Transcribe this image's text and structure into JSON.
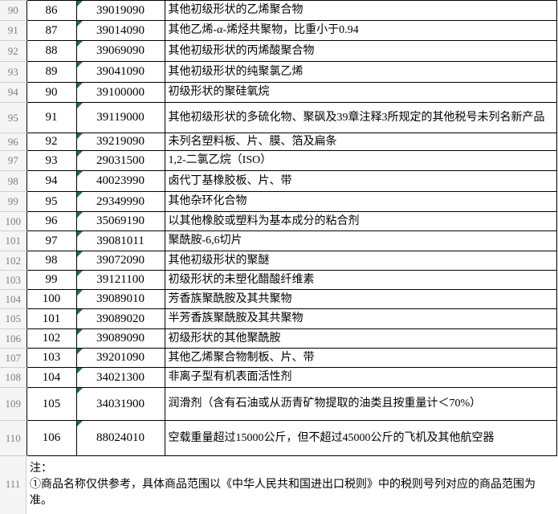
{
  "sheet": {
    "columns": {
      "gutter_width": 33,
      "seq_width": 62,
      "code_width": 110,
      "desc_width": 488
    },
    "colors": {
      "grid_border": "#000000",
      "gutter_bg": "#f5f5f5",
      "gutter_text": "#7e7e7e",
      "gutter_line": "#cfcfcf",
      "cell_bg": "#ffffff",
      "text": "#000000",
      "text_flag_green": "#217346"
    },
    "rows": [
      {
        "excel_row": "90",
        "seq": "86",
        "code": "39019090",
        "desc": "其他初级形状的乙烯聚合物",
        "h": 25
      },
      {
        "excel_row": "91",
        "seq": "87",
        "code": "39014090",
        "desc": "其他乙烯-α-烯烃共聚物，比重小于0.94",
        "h": 25
      },
      {
        "excel_row": "92",
        "seq": "88",
        "code": "39069090",
        "desc": "其他初级形状的丙烯酸聚合物",
        "h": 26
      },
      {
        "excel_row": "93",
        "seq": "89",
        "code": "39041090",
        "desc": "其他初级形状的纯聚氯乙烯",
        "h": 26
      },
      {
        "excel_row": "94",
        "seq": "90",
        "code": "39100000",
        "desc": "初级形状的聚硅氧烷",
        "h": 25
      },
      {
        "excel_row": "95",
        "seq": "91",
        "code": "39119000",
        "desc": "其他初级形状的多硫化物、聚砜及39章注释3所规定的其他税号未列名新产品",
        "h": 38
      },
      {
        "excel_row": "96",
        "seq": "92",
        "code": "39219090",
        "desc": "未列名塑料板、片、膜、箔及扁条",
        "h": 22
      },
      {
        "excel_row": "97",
        "seq": "93",
        "code": "29031500",
        "desc": "1,2-二氯乙烷（ISO）",
        "h": 25
      },
      {
        "excel_row": "98",
        "seq": "94",
        "code": "40023990",
        "desc": "卤代丁基橡胶板、片、带",
        "h": 26
      },
      {
        "excel_row": "99",
        "seq": "95",
        "code": "29349990",
        "desc": "其他杂环化合物",
        "h": 25
      },
      {
        "excel_row": "100",
        "seq": "96",
        "code": "35069190",
        "desc": "以其他橡胶或塑料为基本成分的粘合剂",
        "h": 24
      },
      {
        "excel_row": "101",
        "seq": "97",
        "code": "39081011",
        "desc": "聚酰胺-6,6切片",
        "h": 25
      },
      {
        "excel_row": "102",
        "seq": "98",
        "code": "39072090",
        "desc": "其他初级形状的聚醚",
        "h": 24
      },
      {
        "excel_row": "103",
        "seq": "99",
        "code": "39121100",
        "desc": "初级形状的未塑化醋酸纤维素",
        "h": 24
      },
      {
        "excel_row": "104",
        "seq": "100",
        "code": "39089010",
        "desc": "芳香族聚酰胺及其共聚物",
        "h": 24
      },
      {
        "excel_row": "105",
        "seq": "101",
        "code": "39089020",
        "desc": "半芳香族聚酰胺及其共聚物",
        "h": 25
      },
      {
        "excel_row": "106",
        "seq": "102",
        "code": "39089090",
        "desc": "初级形状的其他聚酰胺",
        "h": 24
      },
      {
        "excel_row": "107",
        "seq": "103",
        "code": "39201090",
        "desc": "其他乙烯聚合物制板、片、带",
        "h": 24
      },
      {
        "excel_row": "108",
        "seq": "104",
        "code": "34021300",
        "desc": "非离子型有机表面活性剂",
        "h": 25
      },
      {
        "excel_row": "109",
        "seq": "105",
        "code": "34031900",
        "desc": "润滑剂（含有石油或从沥青矿物提取的油类且按重量计＜70%）",
        "h": 41
      },
      {
        "excel_row": "110",
        "seq": "106",
        "code": "88024010",
        "desc": "空载重量超过15000公斤，但不超过45000公斤的飞机及其他航空器",
        "h": 44
      }
    ],
    "note": {
      "excel_row": "111",
      "label": "注：",
      "text": "①商品名称仅供参考，具体商品范围以《中华人民共和国进出口税则》中的税则号列对应的商品范围为准。"
    }
  }
}
